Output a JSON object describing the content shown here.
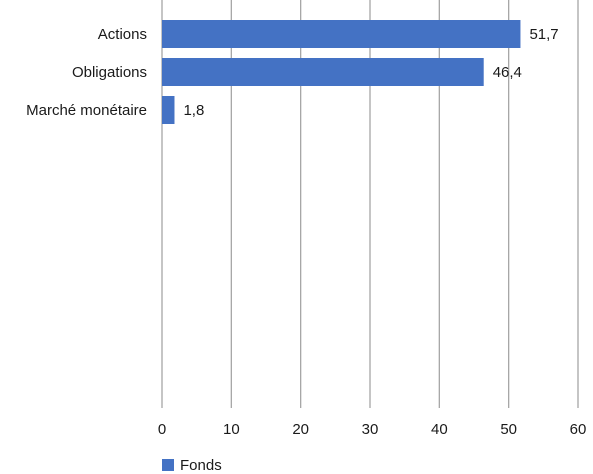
{
  "chart_data": {
    "type": "bar",
    "orientation": "horizontal",
    "categories": [
      "Actions",
      "Obligations",
      "Marché monétaire"
    ],
    "series": [
      {
        "name": "Fonds",
        "values": [
          51.7,
          46.4,
          1.8
        ],
        "color": "#4472c4"
      }
    ],
    "data_labels": [
      "51,7",
      "46,4",
      "1,8"
    ],
    "xlim": [
      0,
      60
    ],
    "xticks": [
      0,
      10,
      20,
      30,
      40,
      50,
      60
    ],
    "xtick_labels": [
      "0",
      "10",
      "20",
      "30",
      "40",
      "50",
      "60"
    ],
    "grid": true,
    "grid_color": "#a6a6a6",
    "legend_position": "bottom-left"
  }
}
